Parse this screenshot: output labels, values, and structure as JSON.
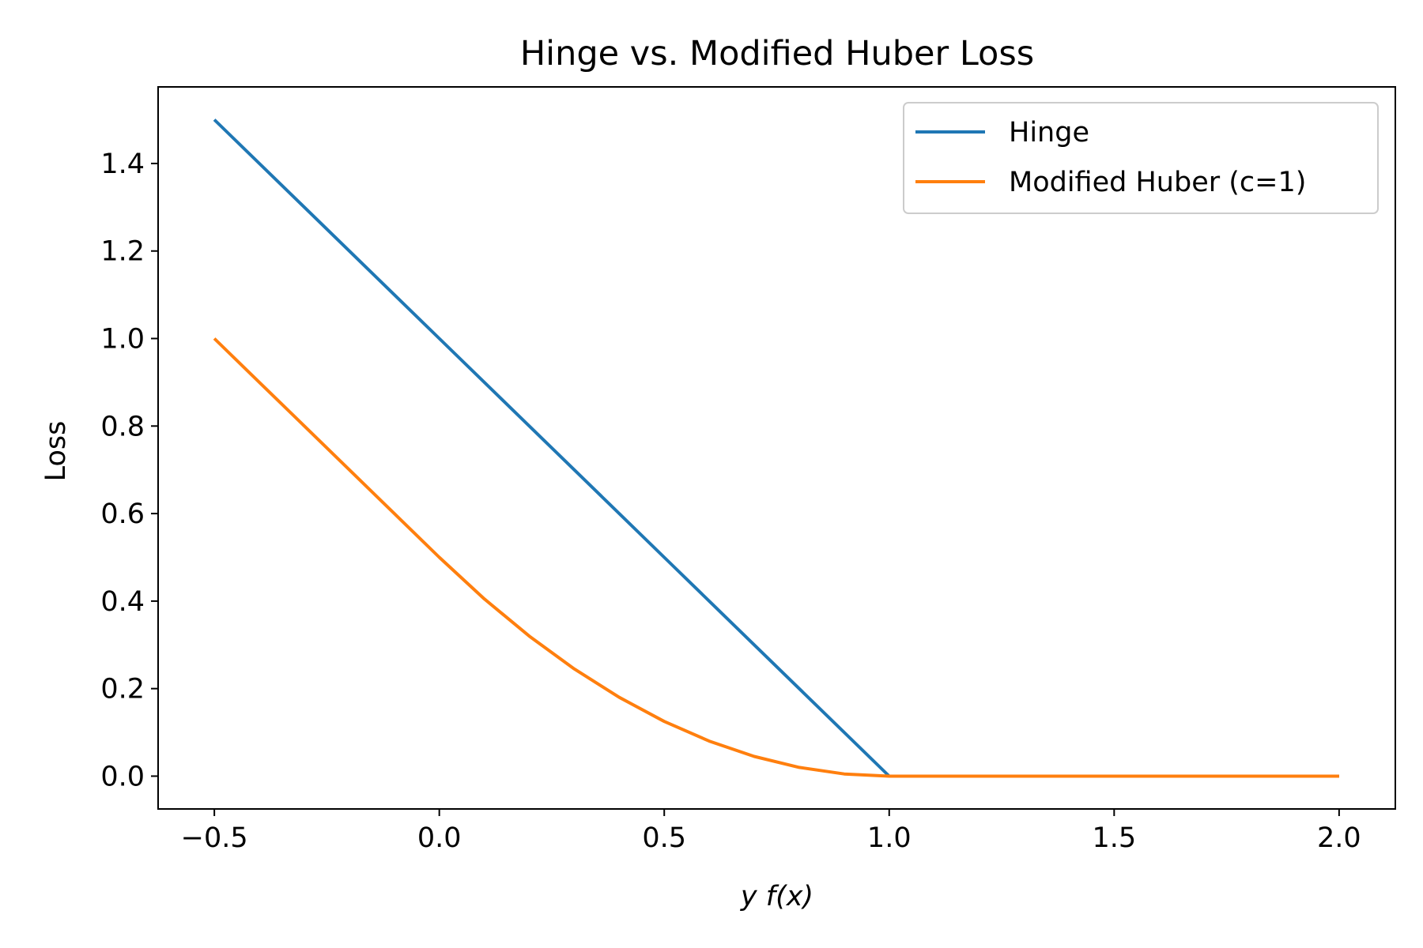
{
  "chart_data": {
    "type": "line",
    "title": "Hinge vs. Modified Huber Loss",
    "xlabel": "y f(x)",
    "ylabel": "Loss",
    "xlim": [
      -0.625,
      2.125
    ],
    "ylim": [
      -0.075,
      1.575
    ],
    "xticks": [
      {
        "value": -0.5,
        "label": "−0.5"
      },
      {
        "value": 0.0,
        "label": "0.0"
      },
      {
        "value": 0.5,
        "label": "0.5"
      },
      {
        "value": 1.0,
        "label": "1.0"
      },
      {
        "value": 1.5,
        "label": "1.5"
      },
      {
        "value": 2.0,
        "label": "2.0"
      }
    ],
    "yticks": [
      {
        "value": 0.0,
        "label": "0.0"
      },
      {
        "value": 0.2,
        "label": "0.2"
      },
      {
        "value": 0.4,
        "label": "0.4"
      },
      {
        "value": 0.6,
        "label": "0.6"
      },
      {
        "value": 0.8,
        "label": "0.8"
      },
      {
        "value": 1.0,
        "label": "1.0"
      },
      {
        "value": 1.2,
        "label": "1.2"
      },
      {
        "value": 1.4,
        "label": "1.4"
      }
    ],
    "grid": false,
    "legend_position": "top-right",
    "series": [
      {
        "name": "Hinge",
        "color": "#1f77b4",
        "x": [
          -0.5,
          0.0,
          0.5,
          1.0,
          1.5,
          2.0
        ],
        "y": [
          1.5,
          1.0,
          0.5,
          0.0,
          0.0,
          0.0
        ]
      },
      {
        "name": "Modified Huber (c=1)",
        "color": "#ff7f0e",
        "x": [
          -0.5,
          -0.4,
          -0.3,
          -0.2,
          -0.1,
          0.0,
          0.1,
          0.2,
          0.3,
          0.4,
          0.5,
          0.6,
          0.7,
          0.8,
          0.9,
          1.0,
          1.5,
          2.0
        ],
        "y": [
          1.0,
          0.9,
          0.8,
          0.7,
          0.6,
          0.5,
          0.405,
          0.32,
          0.245,
          0.18,
          0.125,
          0.08,
          0.045,
          0.02,
          0.005,
          0.0,
          0.0,
          0.0
        ]
      }
    ]
  }
}
